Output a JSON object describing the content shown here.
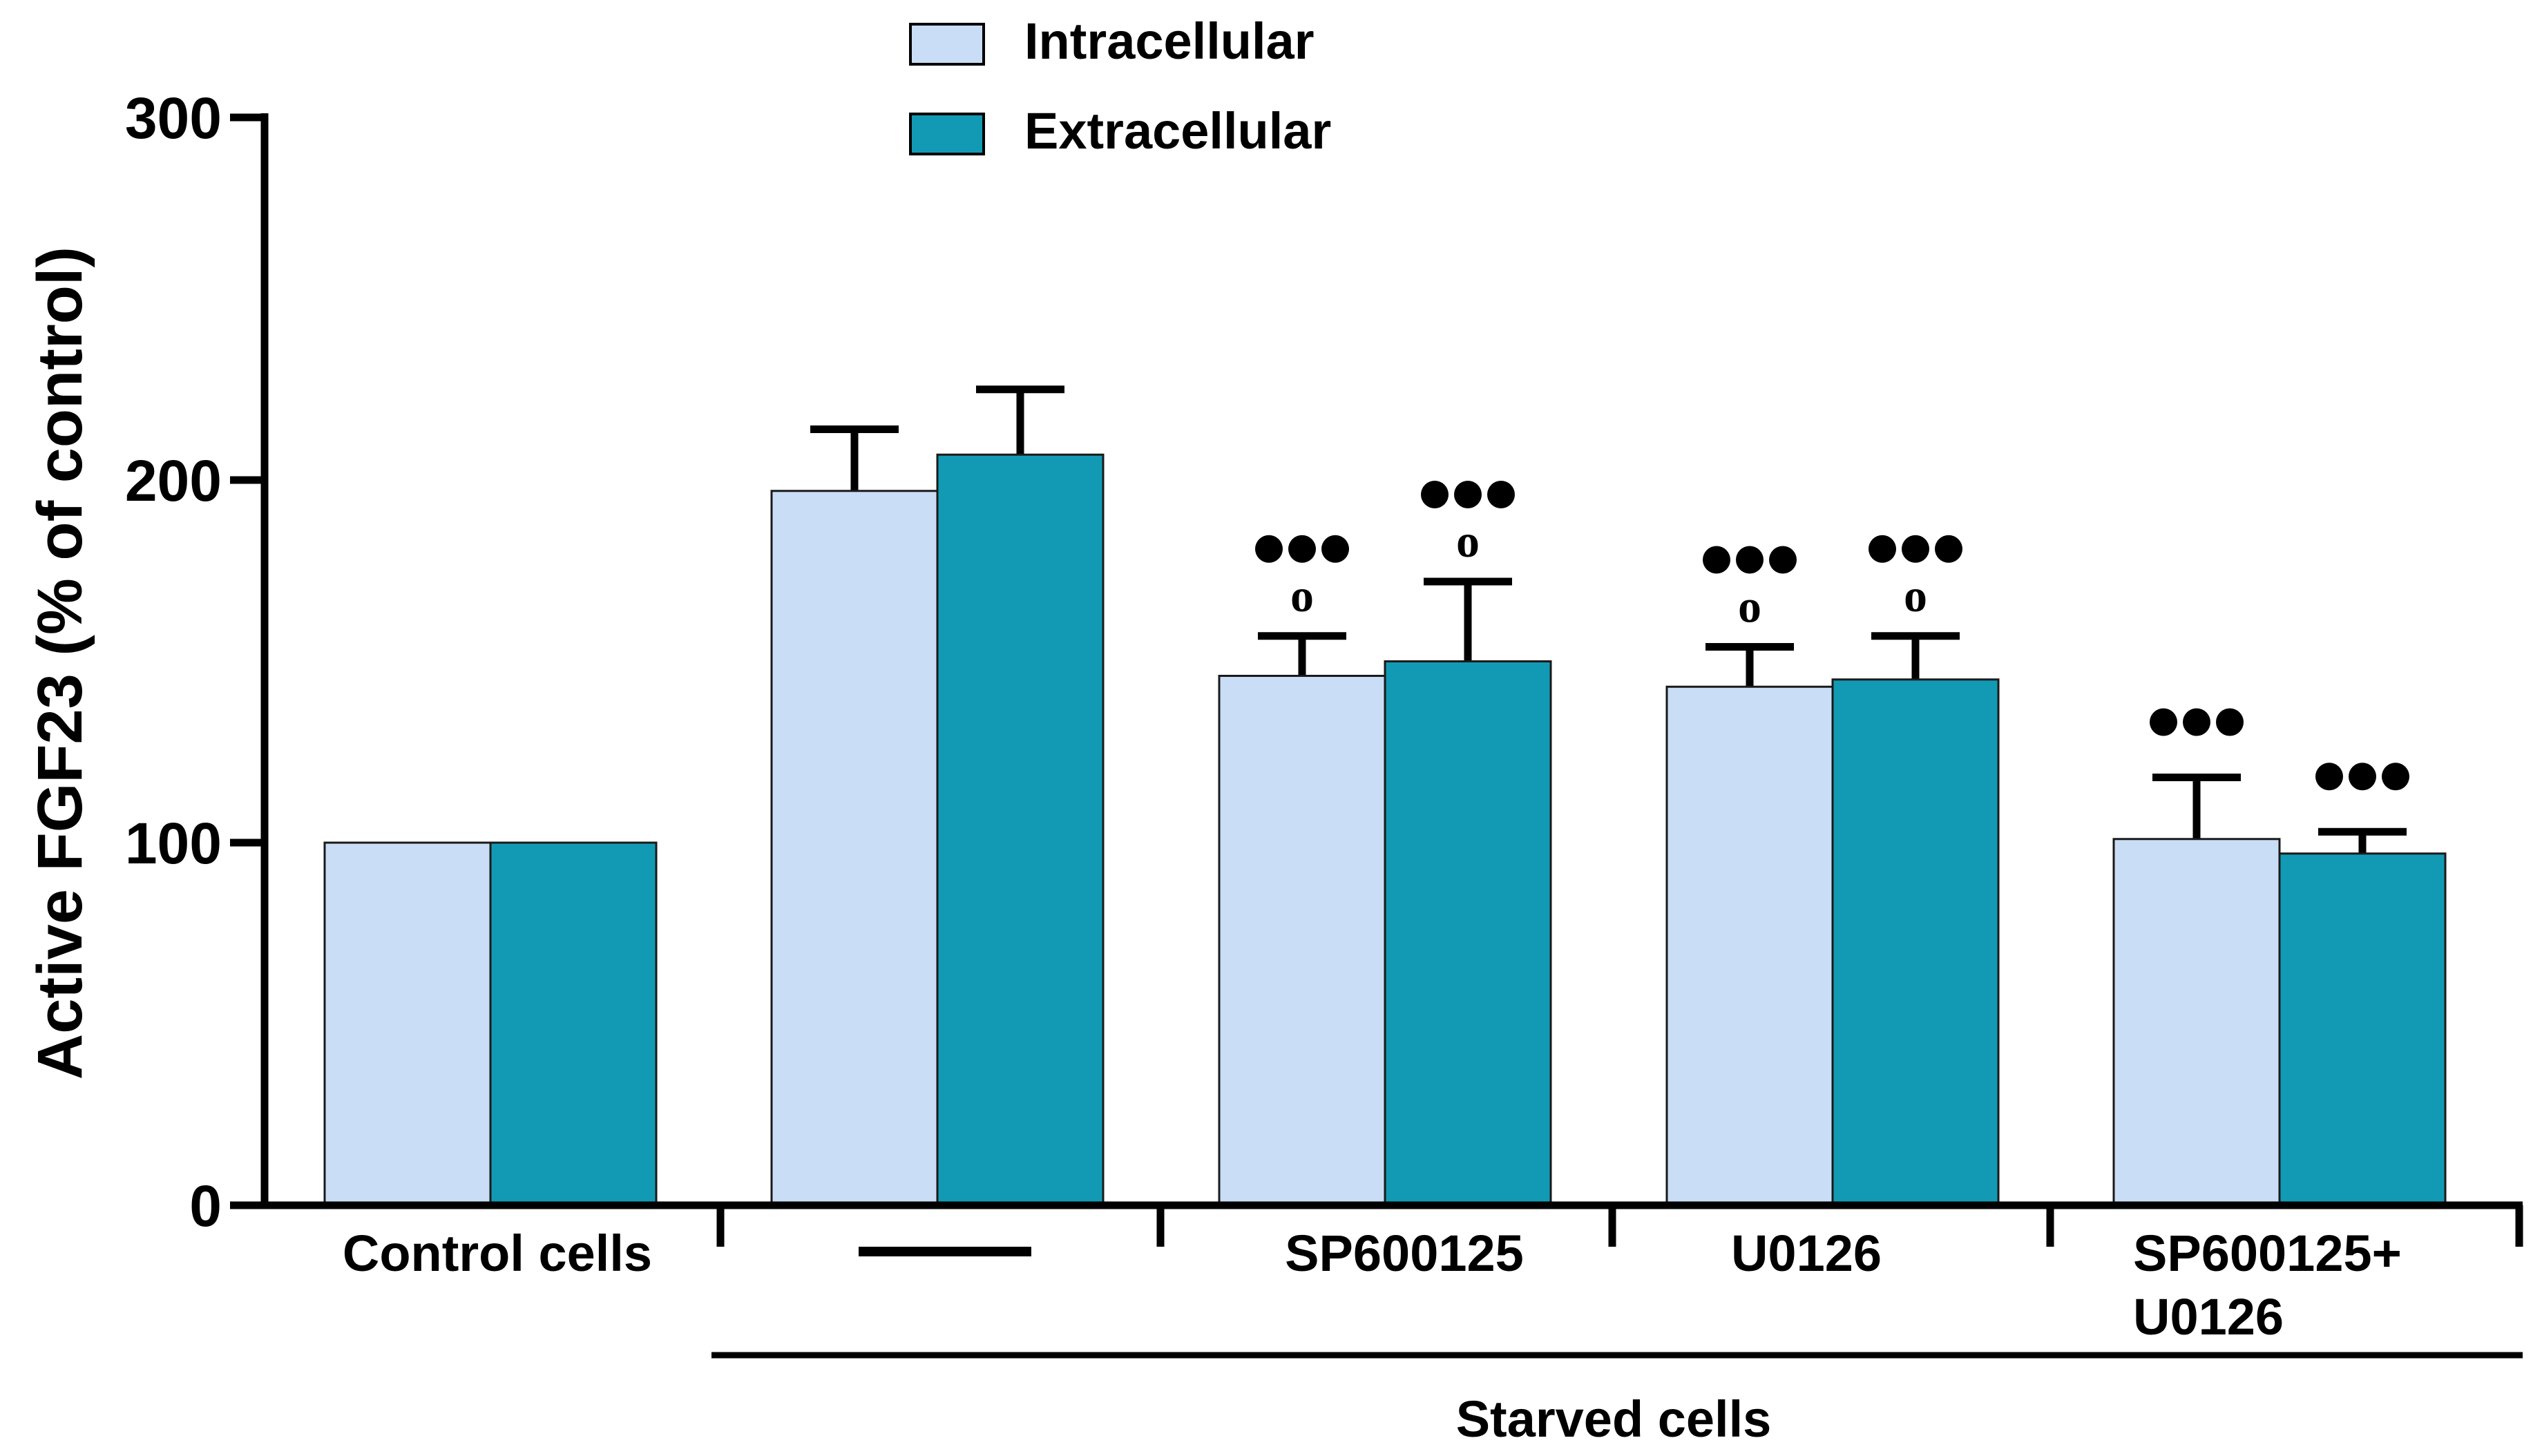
{
  "chart_data": {
    "type": "bar",
    "title": "",
    "xlabel": "",
    "ylabel": "Active FGF23 (% of control)",
    "ylim": [
      0,
      300
    ],
    "yticks": [
      "0",
      "100",
      "200",
      "300"
    ],
    "categories": [
      "Control cells",
      "———",
      "SP600125",
      "U0126",
      "SP600125+\nU0126"
    ],
    "group_label": "Starved cells",
    "series": [
      {
        "name": "Intracellular",
        "color": "#c9ddf6",
        "values": [
          100,
          197,
          146,
          143,
          101
        ],
        "errors": [
          0,
          17,
          11,
          11,
          17
        ],
        "annotations": [
          "",
          "",
          "●●●\no",
          "●●●\no",
          "●●●"
        ]
      },
      {
        "name": "Extracellular",
        "color": "#129ab4",
        "values": [
          100,
          207,
          150,
          145,
          97
        ],
        "errors": [
          0,
          18,
          22,
          12,
          6
        ],
        "annotations": [
          "",
          "",
          "●●●\no",
          "●●●\no",
          "●●●"
        ]
      }
    ],
    "legend_position": "top-center"
  }
}
